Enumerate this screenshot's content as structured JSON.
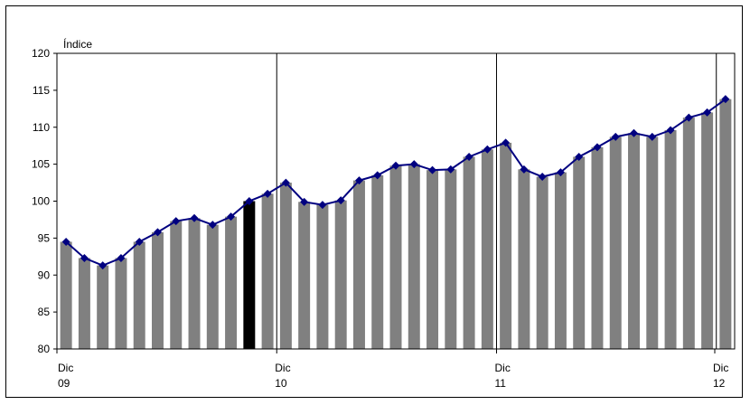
{
  "chart_data": {
    "type": "bar",
    "ylabel": "Índice",
    "ylim": [
      80,
      120
    ],
    "yticks": [
      80,
      85,
      90,
      95,
      100,
      105,
      110,
      115,
      120
    ],
    "x_axis_labels": [
      {
        "index": 0,
        "month": "Dic",
        "year": "09"
      },
      {
        "index": 12,
        "month": "Dic",
        "year": "10"
      },
      {
        "index": 24,
        "month": "Dic",
        "year": "11"
      },
      {
        "index": 36,
        "month": "Dic",
        "year": "12"
      }
    ],
    "separator_indices": [
      12,
      24,
      36
    ],
    "highlight_index": 10,
    "colors": {
      "bar": "#808080",
      "highlight_bar": "#000000",
      "line": "#000080",
      "marker": "#000080"
    },
    "series": [
      {
        "type": "bar",
        "values": [
          94.5,
          92.3,
          91.3,
          92.3,
          94.5,
          95.8,
          97.3,
          97.7,
          96.8,
          97.9,
          100.0,
          101.0,
          102.5,
          99.9,
          99.5,
          100.1,
          102.8,
          103.5,
          104.8,
          105.0,
          104.2,
          104.3,
          106.0,
          107.0,
          107.9,
          104.3,
          103.3,
          103.9,
          106.0,
          107.3,
          108.7,
          109.2,
          108.7,
          109.6,
          111.3,
          112.0,
          113.8
        ]
      },
      {
        "type": "line",
        "values": [
          94.5,
          92.3,
          91.3,
          92.3,
          94.5,
          95.8,
          97.3,
          97.7,
          96.8,
          97.9,
          100.0,
          101.0,
          102.5,
          99.9,
          99.5,
          100.1,
          102.8,
          103.5,
          104.8,
          105.0,
          104.2,
          104.3,
          106.0,
          107.0,
          107.9,
          104.3,
          103.3,
          103.9,
          106.0,
          107.3,
          108.7,
          109.2,
          108.7,
          109.6,
          111.3,
          112.0,
          113.8
        ]
      }
    ]
  }
}
